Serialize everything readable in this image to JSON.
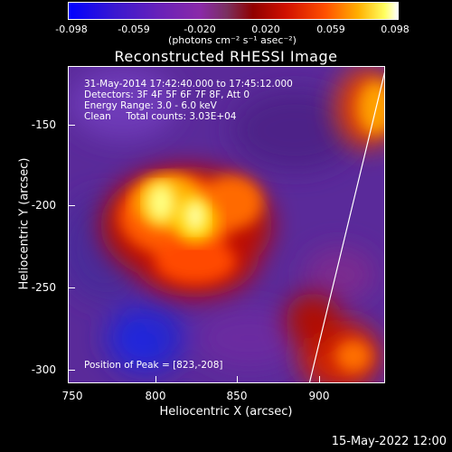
{
  "colorbar": {
    "ticks": [
      "-0.098",
      "-0.059",
      "-0.020",
      "0.020",
      "0.059",
      "0.098"
    ],
    "units": "(photons cm⁻² s⁻¹ asec⁻²)"
  },
  "title": "Reconstructed RHESSI Image",
  "info": {
    "line1": "31-May-2014 17:42:40.000 to 17:45:12.000",
    "line2": "Detectors: 3F 4F 5F 6F 7F 8F, Att 0",
    "line3": "Energy Range: 3.0 - 6.0 keV",
    "line4": "Clean     Total counts: 3.03E+04",
    "peak": "Position of Peak = [823,-208]"
  },
  "axes": {
    "xlabel": "Heliocentric X (arcsec)",
    "ylabel": "Heliocentric Y (arcsec)",
    "xticks": [
      "750",
      "800",
      "850",
      "900"
    ],
    "yticks": [
      "-150",
      "-200",
      "-250",
      "-300"
    ]
  },
  "timestamp": "15-May-2022 12:00",
  "colors": {
    "background": "#000000",
    "frame": "#ffffff"
  }
}
